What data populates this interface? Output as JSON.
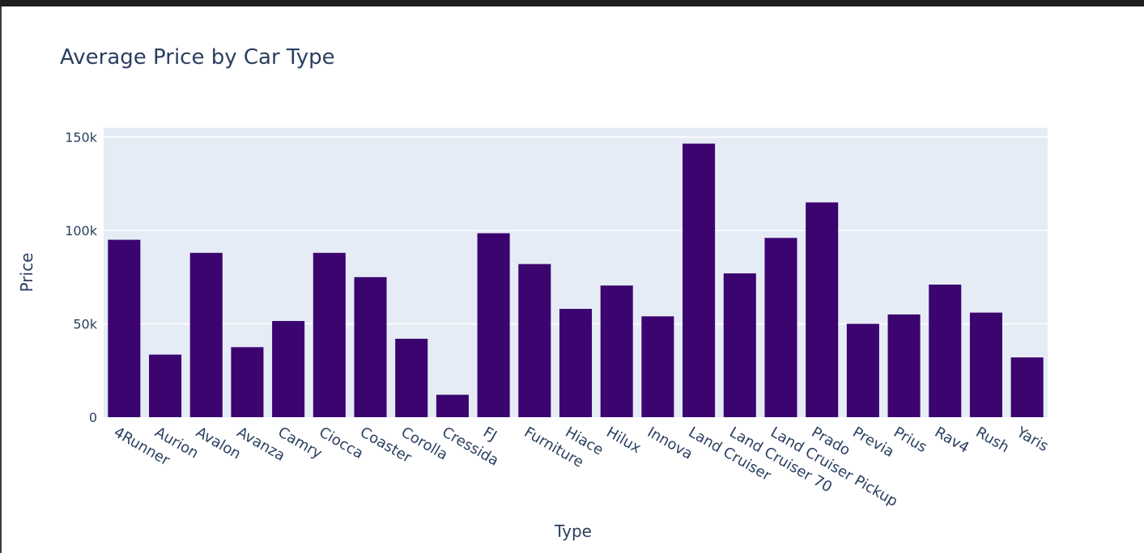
{
  "chart_data": {
    "type": "bar",
    "title": "Average Price by Car Type",
    "xlabel": "Type",
    "ylabel": "Price",
    "ylim": [
      0,
      155000
    ],
    "yticks": [
      {
        "value": 0,
        "label": "0"
      },
      {
        "value": 50000,
        "label": "50k"
      },
      {
        "value": 100000,
        "label": "100k"
      },
      {
        "value": 150000,
        "label": "150k"
      }
    ],
    "grid": true,
    "legend": "none",
    "colors": {
      "bar": "#3b046f",
      "plot_bg": "#e5ecf6",
      "grid": "#ffffff",
      "text": "#2a3f5f"
    },
    "categories": [
      "4Runner",
      "Aurion",
      "Avalon",
      "Avanza",
      "Camry",
      "Ciocca",
      "Coaster",
      "Corolla",
      "Cressida",
      "FJ",
      "Furniture",
      "Hiace",
      "Hilux",
      "Innova",
      "Land Cruiser",
      "Land Cruiser 70",
      "Land Cruiser Pickup",
      "Prado",
      "Previa",
      "Prius",
      "Rav4",
      "Rush",
      "Yaris"
    ],
    "values": [
      95000,
      33500,
      88000,
      37500,
      51500,
      88000,
      75000,
      42000,
      12000,
      98500,
      82000,
      58000,
      70500,
      54000,
      146500,
      77000,
      96000,
      115000,
      50000,
      55000,
      71000,
      56000,
      32000
    ]
  }
}
